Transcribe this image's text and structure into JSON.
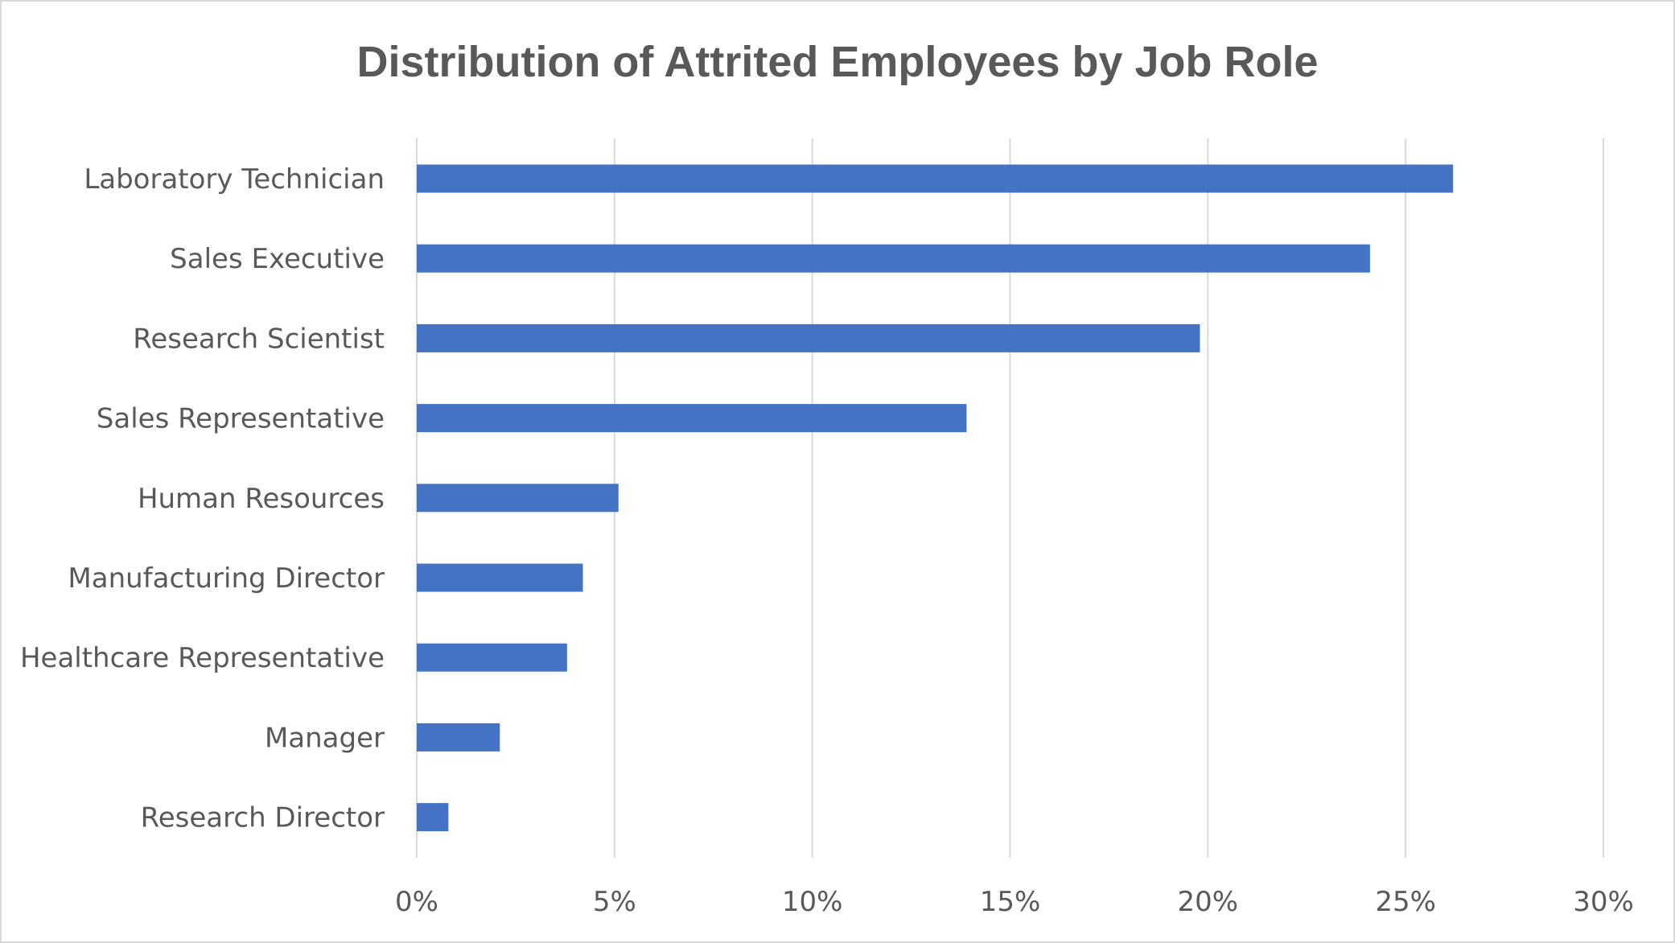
{
  "chart_data": {
    "type": "bar",
    "orientation": "horizontal",
    "title": "Distribution of Attrited Employees by Job Role",
    "xlabel": "",
    "ylabel": "",
    "categories": [
      "Laboratory Technician",
      "Sales Executive",
      "Research Scientist",
      "Sales Representative",
      "Human Resources",
      "Manufacturing Director",
      "Healthcare Representative",
      "Manager",
      "Research Director"
    ],
    "values": [
      26.2,
      24.1,
      19.8,
      13.9,
      5.1,
      4.2,
      3.8,
      2.1,
      0.8
    ],
    "value_unit": "%",
    "xlim": [
      0,
      30
    ],
    "x_ticks": [
      "0%",
      "5%",
      "10%",
      "15%",
      "20%",
      "25%",
      "30%"
    ],
    "x_tick_values": [
      0,
      5,
      10,
      15,
      20,
      25,
      30
    ],
    "grid": "vertical",
    "legend": "none",
    "bar_color": "#4472c4"
  }
}
